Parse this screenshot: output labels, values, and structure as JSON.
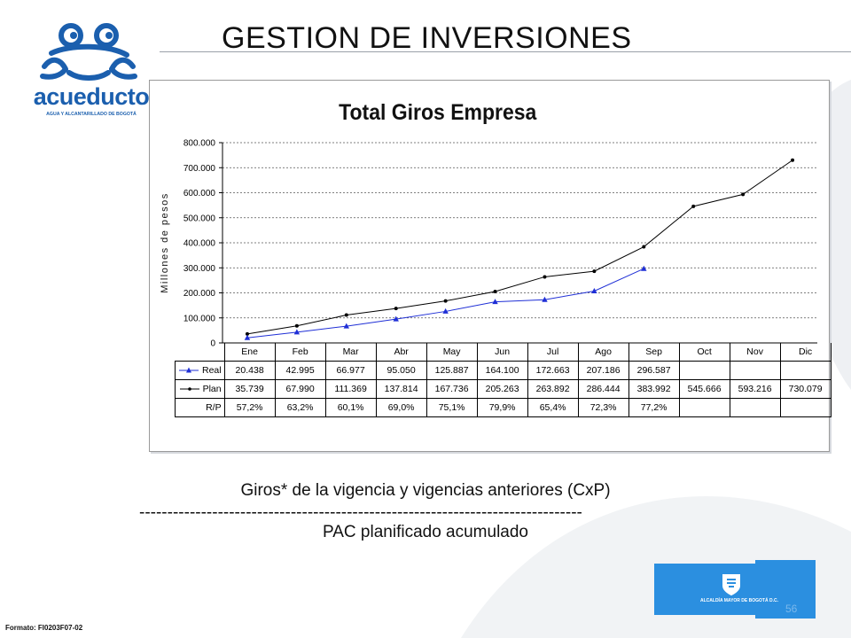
{
  "page_title": "GESTION DE INVERSIONES",
  "logo": {
    "wordmark": "acueducto",
    "subtitle": "AGUA Y ALCANTARILLADO DE BOGOTÁ"
  },
  "caption_line1": "Giros* de la vigencia y vigencias anteriores (CxP)",
  "caption_separator": "-------------------------------------------------------------------------------",
  "caption_line2": "PAC planificado acumulado",
  "footer": {
    "format_code": "Formato: FI0203F07-02",
    "page_number": "56",
    "alcaldia_text": "ALCALDÍA MAYOR DE BOGOTÁ D.C."
  },
  "colors": {
    "real_series": "#1f2fd6",
    "plan_series": "#000000",
    "brand_blue": "#1b5fae",
    "alcaldia_blue": "#2b8fe0"
  },
  "chart_data": {
    "type": "line",
    "title": "Total Giros Empresa",
    "ylabel": "Millones de pesos",
    "xlabel": "",
    "categories": [
      "Ene",
      "Feb",
      "Mar",
      "Abr",
      "May",
      "Jun",
      "Jul",
      "Ago",
      "Sep",
      "Oct",
      "Nov",
      "Dic"
    ],
    "ylim": [
      0,
      800000
    ],
    "yticks": [
      0,
      100000,
      200000,
      300000,
      400000,
      500000,
      600000,
      700000,
      800000
    ],
    "ytick_labels": [
      "0",
      "100.000",
      "200.000",
      "300.000",
      "400.000",
      "500.000",
      "600.000",
      "700.000",
      "800.000"
    ],
    "grid": "horizontal dashed",
    "legend": "table-below",
    "series": [
      {
        "name": "Real",
        "marker": "triangle",
        "values": [
          20438,
          42995,
          66977,
          95050,
          125887,
          164100,
          172663,
          207186,
          296587,
          null,
          null,
          null
        ],
        "labels": [
          "20.438",
          "42.995",
          "66.977",
          "95.050",
          "125.887",
          "164.100",
          "172.663",
          "207.186",
          "296.587",
          "",
          "",
          ""
        ]
      },
      {
        "name": "Plan",
        "marker": "dot",
        "values": [
          35739,
          67990,
          111369,
          137814,
          167736,
          205263,
          263892,
          286444,
          383992,
          545666,
          593216,
          730079
        ],
        "labels": [
          "35.739",
          "67.990",
          "111.369",
          "137.814",
          "167.736",
          "205.263",
          "263.892",
          "286.444",
          "383.992",
          "545.666",
          "593.216",
          "730.079"
        ]
      }
    ],
    "ratio_row": {
      "name": "R/P",
      "labels": [
        "57,2%",
        "63,2%",
        "60,1%",
        "69,0%",
        "75,1%",
        "79,9%",
        "65,4%",
        "72,3%",
        "77,2%",
        "",
        "",
        ""
      ]
    }
  }
}
